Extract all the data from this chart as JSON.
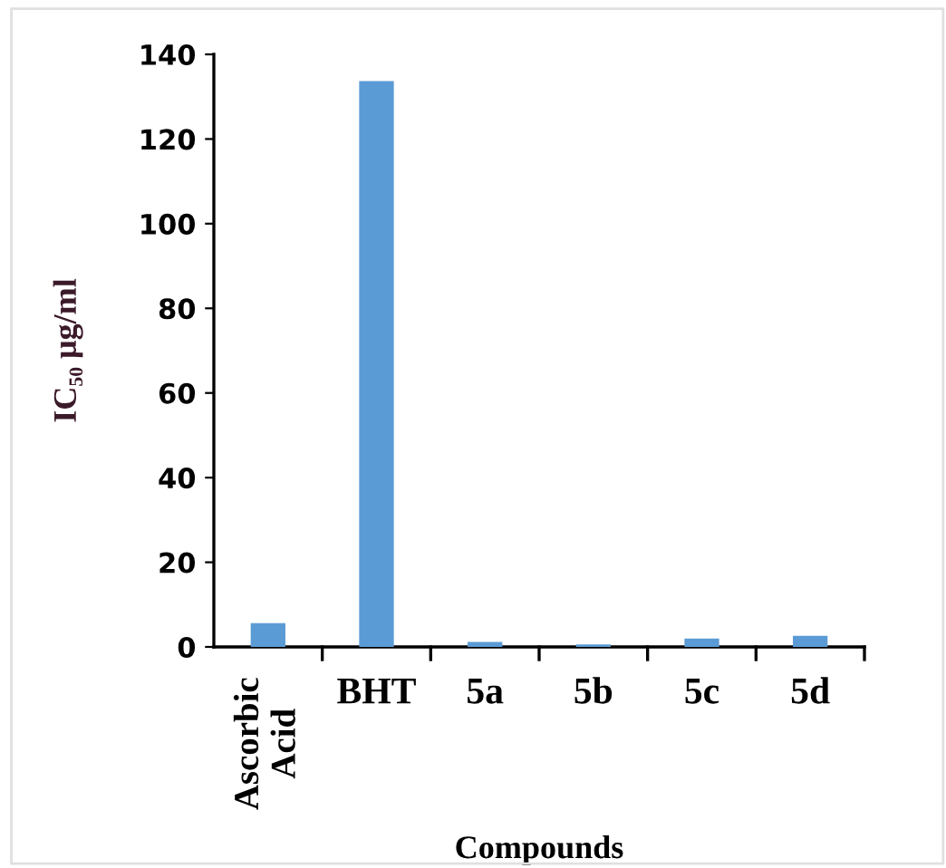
{
  "chart_data": {
    "type": "bar",
    "categories": [
      "Ascorbic\nAcid",
      "BHT",
      "5a",
      "5b",
      "5c",
      "5d"
    ],
    "values": [
      5.6,
      133.7,
      1.2,
      0.6,
      2.0,
      2.6
    ],
    "color": "#5b9bd5",
    "xlabel": "Compounds",
    "ylabel": "IC₅₀ μg/ml",
    "ylim": [
      0,
      140
    ],
    "yticks": [
      0,
      20,
      40,
      60,
      80,
      100,
      120,
      140
    ],
    "grid": false,
    "legend": false
  }
}
